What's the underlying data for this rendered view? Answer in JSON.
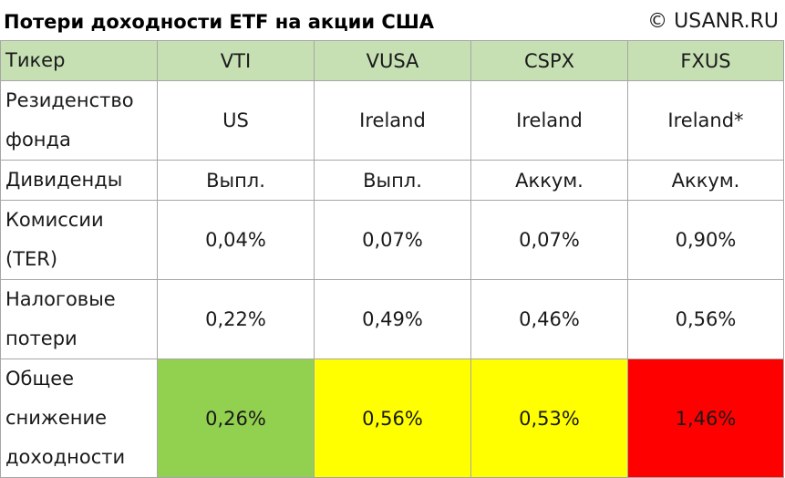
{
  "title": "Потери доходности ETF на акции США",
  "copyright": "© USANR.RU",
  "colors": {
    "header_bg": "#c6e0b4",
    "good": "#92d050",
    "medium": "#ffff00",
    "bad": "#ff0000",
    "border": "#a6a6a6"
  },
  "table": {
    "header": {
      "label": "Тикер",
      "values": [
        "VTI",
        "VUSA",
        "CSPX",
        "FXUS"
      ]
    },
    "domicile": {
      "label_lines": [
        "Резиденство",
        "фонда"
      ],
      "values": [
        "US",
        "Ireland",
        "Ireland",
        "Ireland*"
      ]
    },
    "dividends": {
      "label": "Дивиденды",
      "values": [
        "Выпл.",
        "Выпл.",
        "Аккум.",
        "Аккум."
      ]
    },
    "ter": {
      "label_lines": [
        "Комиссии",
        "(TER)"
      ],
      "values": [
        "0,04%",
        "0,07%",
        "0,07%",
        "0,90%"
      ]
    },
    "tax": {
      "label_lines": [
        "Налоговые",
        "потери"
      ],
      "values": [
        "0,22%",
        "0,49%",
        "0,46%",
        "0,56%"
      ]
    },
    "total": {
      "label_lines": [
        "Общее",
        "снижение",
        "доходности"
      ],
      "values": [
        "0,26%",
        "0,56%",
        "0,53%",
        "1,46%"
      ]
    }
  }
}
